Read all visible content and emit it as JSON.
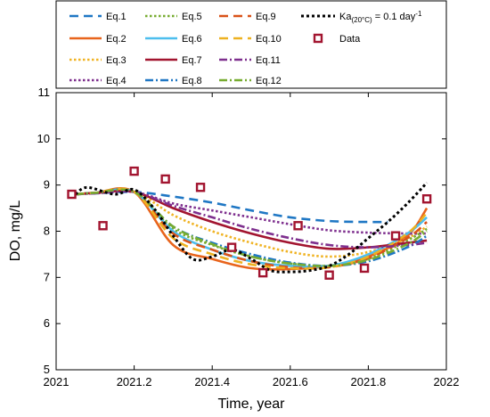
{
  "chart_data": {
    "type": "line",
    "xlabel": "Time, year",
    "ylabel": "DO, mg/L",
    "xlim": [
      2021,
      2022
    ],
    "ylim": [
      5,
      11
    ],
    "xticks": [
      "2021",
      "2021.2",
      "2021.4",
      "2021.6",
      "2021.8",
      "2022"
    ],
    "yticks": [
      "5",
      "6",
      "7",
      "8",
      "9",
      "10",
      "11"
    ],
    "legend_position": "top, above plot area",
    "grid": false,
    "series": [
      {
        "name": "Eq.1",
        "color": "#1f77c4",
        "dash": "long-dash",
        "x": [
          2021.05,
          2021.1,
          2021.2,
          2021.3,
          2021.4,
          2021.5,
          2021.6,
          2021.7,
          2021.8,
          2021.85
        ],
        "y": [
          8.8,
          8.82,
          8.85,
          8.75,
          8.62,
          8.45,
          8.3,
          8.22,
          8.2,
          8.2
        ]
      },
      {
        "name": "Eq.2",
        "color": "#e8641c",
        "dash": "solid",
        "x": [
          2021.05,
          2021.1,
          2021.2,
          2021.3,
          2021.4,
          2021.5,
          2021.6,
          2021.7,
          2021.8,
          2021.9,
          2021.95
        ],
        "y": [
          8.8,
          8.83,
          8.85,
          7.7,
          7.4,
          7.2,
          7.18,
          7.25,
          7.45,
          7.9,
          8.5
        ]
      },
      {
        "name": "Eq.3",
        "color": "#f0b323",
        "dash": "dotted",
        "x": [
          2021.05,
          2021.1,
          2021.2,
          2021.3,
          2021.4,
          2021.5,
          2021.6,
          2021.7,
          2021.8,
          2021.9,
          2021.95
        ],
        "y": [
          8.8,
          8.83,
          8.85,
          8.35,
          8.0,
          7.75,
          7.55,
          7.45,
          7.55,
          7.85,
          8.1
        ]
      },
      {
        "name": "Eq.4",
        "color": "#7e2f8e",
        "dash": "dotted",
        "x": [
          2021.05,
          2021.1,
          2021.2,
          2021.3,
          2021.4,
          2021.5,
          2021.6,
          2021.7,
          2021.8,
          2021.9,
          2021.95
        ],
        "y": [
          8.8,
          8.82,
          8.85,
          8.6,
          8.45,
          8.3,
          8.15,
          8.02,
          7.97,
          7.95,
          7.95
        ]
      },
      {
        "name": "Eq.5",
        "color": "#77ac30",
        "dash": "dotted",
        "x": [
          2021.05,
          2021.1,
          2021.2,
          2021.3,
          2021.4,
          2021.5,
          2021.6,
          2021.7,
          2021.8,
          2021.9,
          2021.95
        ],
        "y": [
          8.8,
          8.83,
          8.85,
          8.05,
          7.7,
          7.45,
          7.3,
          7.25,
          7.4,
          7.8,
          8.05
        ]
      },
      {
        "name": "Eq.6",
        "color": "#4dbeee",
        "dash": "solid",
        "x": [
          2021.05,
          2021.1,
          2021.2,
          2021.3,
          2021.4,
          2021.5,
          2021.6,
          2021.7,
          2021.8,
          2021.9,
          2021.95
        ],
        "y": [
          8.8,
          8.83,
          8.85,
          8.0,
          7.6,
          7.35,
          7.25,
          7.25,
          7.5,
          7.95,
          8.3
        ]
      },
      {
        "name": "Eq.7",
        "color": "#a2142f",
        "dash": "solid",
        "x": [
          2021.05,
          2021.1,
          2021.2,
          2021.3,
          2021.4,
          2021.5,
          2021.6,
          2021.7,
          2021.8,
          2021.9,
          2021.95
        ],
        "y": [
          8.8,
          8.83,
          8.85,
          8.5,
          8.2,
          7.95,
          7.75,
          7.62,
          7.65,
          7.75,
          7.8
        ]
      },
      {
        "name": "Eq.8",
        "color": "#1f77c4",
        "dash": "dash-dot",
        "x": [
          2021.05,
          2021.1,
          2021.2,
          2021.3,
          2021.4,
          2021.5,
          2021.6,
          2021.7,
          2021.8,
          2021.9,
          2021.95
        ],
        "y": [
          8.8,
          8.83,
          8.85,
          8.1,
          7.75,
          7.5,
          7.32,
          7.25,
          7.35,
          7.65,
          7.9
        ]
      },
      {
        "name": "Eq.9",
        "color": "#d95319",
        "dash": "long-dash",
        "x": [
          2021.05,
          2021.1,
          2021.2,
          2021.3,
          2021.4,
          2021.5,
          2021.6,
          2021.7,
          2021.8,
          2021.9,
          2021.95
        ],
        "y": [
          8.8,
          8.83,
          8.85,
          7.95,
          7.6,
          7.35,
          7.22,
          7.22,
          7.42,
          7.85,
          8.2
        ]
      },
      {
        "name": "Eq.10",
        "color": "#edb120",
        "dash": "long-dash",
        "x": [
          2021.05,
          2021.1,
          2021.2,
          2021.3,
          2021.4,
          2021.5,
          2021.6,
          2021.7,
          2021.8,
          2021.9,
          2021.95
        ],
        "y": [
          8.8,
          8.83,
          8.85,
          7.85,
          7.5,
          7.28,
          7.2,
          7.22,
          7.45,
          7.95,
          8.4
        ]
      },
      {
        "name": "Eq.11",
        "color": "#7e2f8e",
        "dash": "dash-dot",
        "x": [
          2021.05,
          2021.1,
          2021.2,
          2021.3,
          2021.4,
          2021.5,
          2021.6,
          2021.7,
          2021.8,
          2021.9,
          2021.95
        ],
        "y": [
          8.8,
          8.82,
          8.85,
          8.55,
          8.3,
          8.05,
          7.85,
          7.7,
          7.65,
          7.7,
          7.75
        ]
      },
      {
        "name": "Eq.12",
        "color": "#77ac30",
        "dash": "dash-dot",
        "x": [
          2021.05,
          2021.1,
          2021.2,
          2021.3,
          2021.4,
          2021.5,
          2021.6,
          2021.7,
          2021.8,
          2021.9,
          2021.95
        ],
        "y": [
          8.8,
          8.83,
          8.85,
          8.1,
          7.72,
          7.45,
          7.3,
          7.25,
          7.38,
          7.72,
          8.0
        ]
      },
      {
        "name": "Ka(20°C) = 0.1 day-1",
        "color": "#000000",
        "dash": "dotted-thick",
        "x": [
          2021.05,
          2021.08,
          2021.15,
          2021.2,
          2021.25,
          2021.3,
          2021.35,
          2021.4,
          2021.45,
          2021.5,
          2021.55,
          2021.6,
          2021.65,
          2021.7,
          2021.75,
          2021.8,
          2021.85,
          2021.9,
          2021.95
        ],
        "y": [
          8.8,
          8.95,
          8.8,
          8.9,
          8.5,
          7.9,
          7.4,
          7.45,
          7.6,
          7.4,
          7.15,
          7.12,
          7.15,
          7.25,
          7.5,
          7.85,
          8.2,
          8.6,
          9.05
        ]
      }
    ],
    "data_points": {
      "name": "Data",
      "color": "#a2142f",
      "x": [
        2021.04,
        2021.12,
        2021.2,
        2021.28,
        2021.37,
        2021.45,
        2021.53,
        2021.62,
        2021.7,
        2021.79,
        2021.87,
        2021.95
      ],
      "y": [
        8.8,
        8.12,
        9.3,
        9.13,
        8.95,
        7.65,
        7.1,
        8.12,
        7.05,
        7.2,
        7.9,
        8.7
      ]
    }
  },
  "legend": {
    "labels": [
      "Eq.1",
      "Eq.2",
      "Eq.3",
      "Eq.4",
      "Eq.5",
      "Eq.6",
      "Eq.7",
      "Eq.8",
      "Eq.9",
      "Eq.10",
      "Eq.11",
      "Eq.12"
    ],
    "ka_label_main": "Ka",
    "ka_label_sub": "(20°C)",
    "ka_label_rest": " = 0.1 day",
    "ka_label_sup": "-1",
    "data_label": "Data"
  }
}
